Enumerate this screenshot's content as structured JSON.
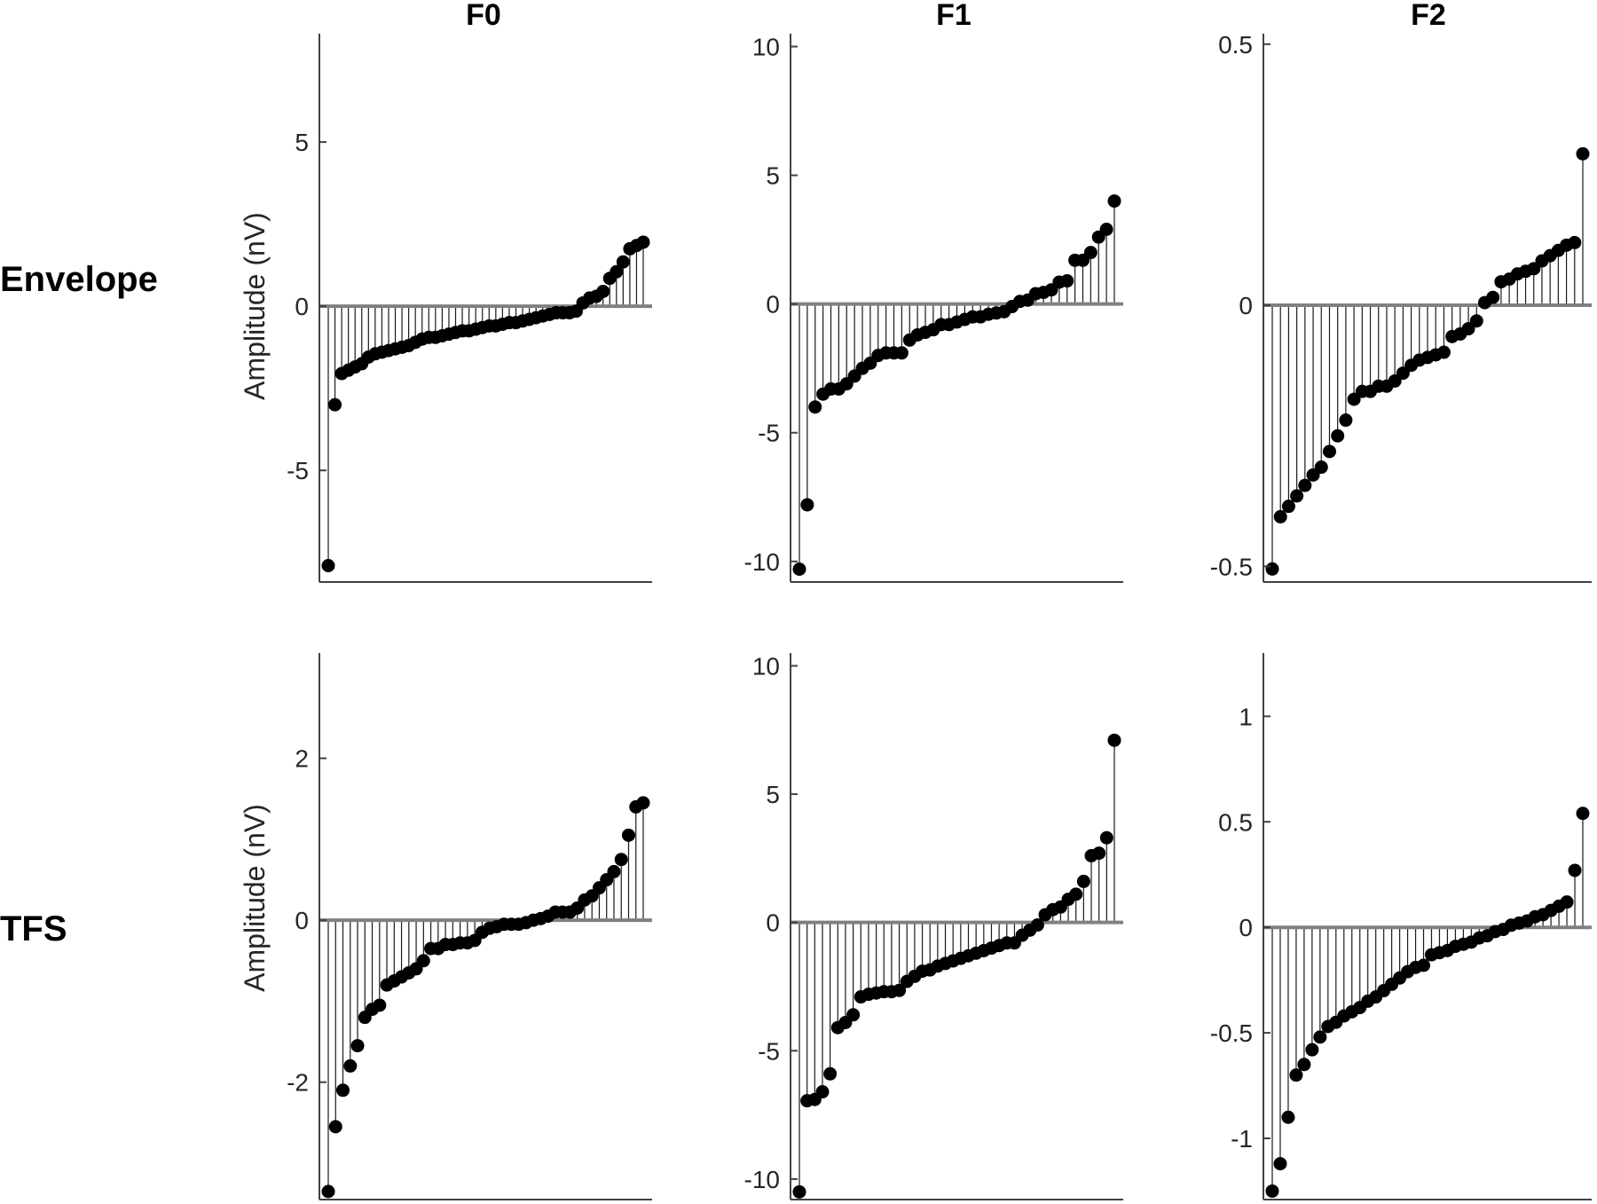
{
  "figure": {
    "col_titles": [
      "F0",
      "F1",
      "F2"
    ],
    "row_labels": [
      "Envelope",
      "TFS"
    ],
    "ylabel": "Amplitude (nV)"
  },
  "chart_data": [
    {
      "type": "stem",
      "panel": "Envelope-F0",
      "ylim": [
        -8.4,
        8.3
      ],
      "yticks": [
        -5,
        0,
        5
      ],
      "ytick_labels": [
        "-5",
        "0",
        "5"
      ],
      "values": [
        -7.9,
        -3.0,
        -2.05,
        -1.95,
        -1.85,
        -1.75,
        -1.55,
        -1.45,
        -1.4,
        -1.35,
        -1.3,
        -1.25,
        -1.2,
        -1.1,
        -1.0,
        -0.95,
        -0.95,
        -0.9,
        -0.85,
        -0.8,
        -0.75,
        -0.75,
        -0.7,
        -0.65,
        -0.6,
        -0.6,
        -0.55,
        -0.5,
        -0.5,
        -0.45,
        -0.4,
        -0.35,
        -0.3,
        -0.25,
        -0.2,
        -0.2,
        -0.2,
        -0.15,
        0.1,
        0.25,
        0.3,
        0.45,
        0.85,
        1.05,
        1.35,
        1.75,
        1.85,
        1.95
      ]
    },
    {
      "type": "stem",
      "panel": "Envelope-F1",
      "ylim": [
        -10.8,
        10.5
      ],
      "yticks": [
        -10,
        -5,
        0,
        5,
        10
      ],
      "ytick_labels": [
        "-10",
        "-5",
        "0",
        "5",
        "10"
      ],
      "values": [
        -10.3,
        -7.8,
        -4.0,
        -3.5,
        -3.3,
        -3.3,
        -3.1,
        -2.8,
        -2.5,
        -2.3,
        -2.0,
        -1.9,
        -1.9,
        -1.9,
        -1.4,
        -1.2,
        -1.1,
        -1.0,
        -0.8,
        -0.8,
        -0.7,
        -0.6,
        -0.5,
        -0.5,
        -0.4,
        -0.35,
        -0.3,
        -0.1,
        0.1,
        0.15,
        0.4,
        0.45,
        0.55,
        0.85,
        0.9,
        1.7,
        1.7,
        2.0,
        2.6,
        2.9,
        4.0
      ]
    },
    {
      "type": "stem",
      "panel": "Envelope-F2",
      "ylim": [
        -0.53,
        0.52
      ],
      "yticks": [
        -0.5,
        0,
        0.5
      ],
      "ytick_labels": [
        "-0.5",
        "0",
        "0.5"
      ],
      "values": [
        -0.505,
        -0.405,
        -0.385,
        -0.365,
        -0.345,
        -0.325,
        -0.31,
        -0.28,
        -0.25,
        -0.22,
        -0.18,
        -0.165,
        -0.165,
        -0.155,
        -0.155,
        -0.145,
        -0.13,
        -0.115,
        -0.105,
        -0.1,
        -0.095,
        -0.09,
        -0.06,
        -0.055,
        -0.045,
        -0.03,
        0.005,
        0.015,
        0.045,
        0.05,
        0.06,
        0.065,
        0.07,
        0.085,
        0.095,
        0.105,
        0.115,
        0.12,
        0.29
      ]
    },
    {
      "type": "stem",
      "panel": "TFS-F0",
      "ylim": [
        -3.45,
        3.3
      ],
      "yticks": [
        -2,
        0,
        2
      ],
      "ytick_labels": [
        "-2",
        "0",
        "2"
      ],
      "values": [
        -3.35,
        -2.55,
        -2.1,
        -1.8,
        -1.55,
        -1.2,
        -1.1,
        -1.05,
        -0.8,
        -0.75,
        -0.7,
        -0.65,
        -0.6,
        -0.5,
        -0.35,
        -0.35,
        -0.3,
        -0.3,
        -0.28,
        -0.28,
        -0.25,
        -0.15,
        -0.1,
        -0.08,
        -0.05,
        -0.05,
        -0.05,
        -0.03,
        0.0,
        0.02,
        0.05,
        0.1,
        0.1,
        0.1,
        0.15,
        0.25,
        0.3,
        0.4,
        0.5,
        0.6,
        0.75,
        1.05,
        1.4,
        1.45
      ]
    },
    {
      "type": "stem",
      "panel": "TFS-F1",
      "ylim": [
        -10.8,
        10.5
      ],
      "yticks": [
        -10,
        -5,
        0,
        5,
        10
      ],
      "ytick_labels": [
        "-10",
        "-5",
        "0",
        "5",
        "10"
      ],
      "values": [
        -10.5,
        -6.95,
        -6.9,
        -6.6,
        -5.9,
        -4.1,
        -3.9,
        -3.6,
        -2.9,
        -2.8,
        -2.75,
        -2.7,
        -2.7,
        -2.65,
        -2.3,
        -2.1,
        -1.9,
        -1.85,
        -1.7,
        -1.6,
        -1.5,
        -1.4,
        -1.3,
        -1.2,
        -1.1,
        -1.0,
        -0.9,
        -0.8,
        -0.8,
        -0.5,
        -0.3,
        -0.1,
        0.3,
        0.5,
        0.6,
        0.9,
        1.1,
        1.6,
        2.6,
        2.7,
        3.3,
        7.1
      ]
    },
    {
      "type": "stem",
      "panel": "TFS-F2",
      "ylim": [
        -1.29,
        1.3
      ],
      "yticks": [
        -1,
        -0.5,
        0,
        0.5,
        1
      ],
      "ytick_labels": [
        "-1",
        "-0.5",
        "0",
        "0.5",
        "1"
      ],
      "values": [
        -1.25,
        -1.12,
        -0.9,
        -0.7,
        -0.65,
        -0.58,
        -0.52,
        -0.47,
        -0.45,
        -0.42,
        -0.4,
        -0.38,
        -0.35,
        -0.33,
        -0.3,
        -0.27,
        -0.24,
        -0.21,
        -0.19,
        -0.18,
        -0.13,
        -0.12,
        -0.11,
        -0.09,
        -0.08,
        -0.07,
        -0.05,
        -0.04,
        -0.02,
        -0.01,
        0.01,
        0.02,
        0.03,
        0.05,
        0.06,
        0.08,
        0.1,
        0.12,
        0.27,
        0.54
      ]
    }
  ],
  "colors": {
    "stem": "#1a1a1a",
    "marker": "#000000",
    "baseline": "#808080",
    "axis": "#404040"
  }
}
